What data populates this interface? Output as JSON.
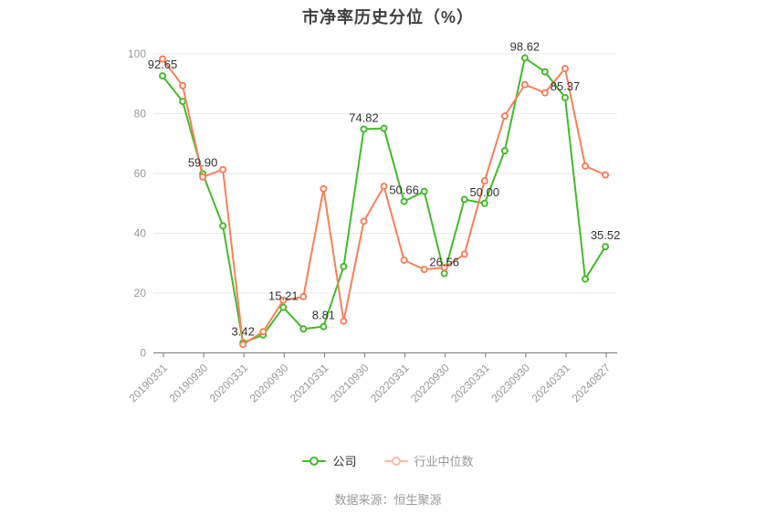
{
  "title": "市净率历史分位（%）",
  "footer": "数据来源：恒生聚源",
  "colors": {
    "company": "#43bb2a",
    "industry": "#f8805a",
    "grid_line": "#e7ebf2",
    "axis_line": "#777777",
    "tick_label": "#999999",
    "value_label": "#333333",
    "legend_company_text": "#333333",
    "legend_industry_text": "#999999",
    "title_text": "#404040"
  },
  "legend": {
    "items": [
      {
        "label": "公司"
      },
      {
        "label": "行业中位数"
      }
    ]
  },
  "chart_data": {
    "type": "line",
    "title": "市净率历史分位（%）",
    "n_points": 23,
    "x_tick_labels": [
      "20190331",
      "20190930",
      "20200331",
      "20200930",
      "20210331",
      "20210930",
      "20220331",
      "20220930",
      "20230331",
      "20230930",
      "20240331",
      "20240827"
    ],
    "x_labeled_indices": [
      0,
      2,
      4,
      6,
      8,
      10,
      12,
      14,
      16,
      18,
      20,
      22
    ],
    "ylim": [
      0,
      100
    ],
    "yticks": [
      0,
      20,
      40,
      60,
      80,
      100
    ],
    "grid": "horizontal-only",
    "legend_position": "bottom",
    "series": [
      {
        "name": "公司",
        "color": "#43bb2a",
        "values": [
          92.65,
          84.1,
          59.9,
          42.5,
          3.42,
          6.0,
          15.21,
          8.0,
          8.81,
          28.9,
          74.82,
          75.1,
          50.66,
          54.0,
          26.56,
          51.3,
          50.0,
          67.6,
          98.62,
          94.0,
          85.37,
          24.7,
          35.52
        ],
        "point_labels": [
          {
            "i": 0,
            "text": "92.65"
          },
          {
            "i": 2,
            "text": "59.90"
          },
          {
            "i": 4,
            "text": "3.42"
          },
          {
            "i": 6,
            "text": "15.21"
          },
          {
            "i": 8,
            "text": "8.81"
          },
          {
            "i": 10,
            "text": "74.82"
          },
          {
            "i": 12,
            "text": "50.66"
          },
          {
            "i": 14,
            "text": "26.56"
          },
          {
            "i": 16,
            "text": "50.00"
          },
          {
            "i": 18,
            "text": "98.62"
          },
          {
            "i": 20,
            "text": "85.37"
          },
          {
            "i": 22,
            "text": "35.52"
          }
        ]
      },
      {
        "name": "行业中位数",
        "color": "#f8805a",
        "values": [
          98.3,
          89.4,
          58.8,
          61.3,
          2.8,
          7.1,
          17.6,
          18.8,
          54.9,
          10.6,
          44.0,
          55.7,
          31.0,
          27.9,
          28.5,
          33.0,
          57.5,
          79.2,
          89.7,
          87.0,
          95.1,
          62.5,
          59.5
        ],
        "point_labels": []
      }
    ]
  }
}
